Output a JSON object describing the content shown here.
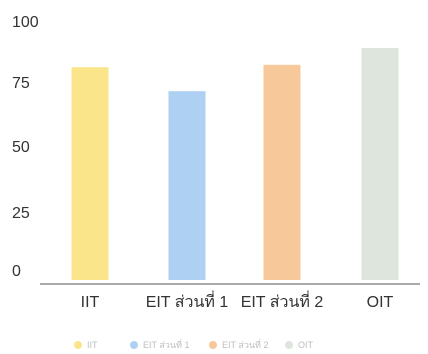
{
  "chart_data": {
    "type": "bar",
    "categories": [
      "IIT",
      "EIT ส่วนที่ 1",
      "EIT ส่วนที่ 2",
      "OIT"
    ],
    "values": [
      87,
      77,
      88,
      95
    ],
    "ylim": [
      0,
      100
    ],
    "yticks": [
      "0",
      "25",
      "50",
      "75",
      "100"
    ],
    "title": "",
    "xlabel": "",
    "ylabel": "",
    "grid": false,
    "legend_position": "bottom",
    "colors": [
      "#fbe58a",
      "#aed0f2",
      "#f7c89a",
      "#dde5dc"
    ],
    "legend": [
      "IIT",
      "EIT ส่วนที่ 1",
      "EIT ส่วนที่ 2",
      "OIT"
    ]
  }
}
